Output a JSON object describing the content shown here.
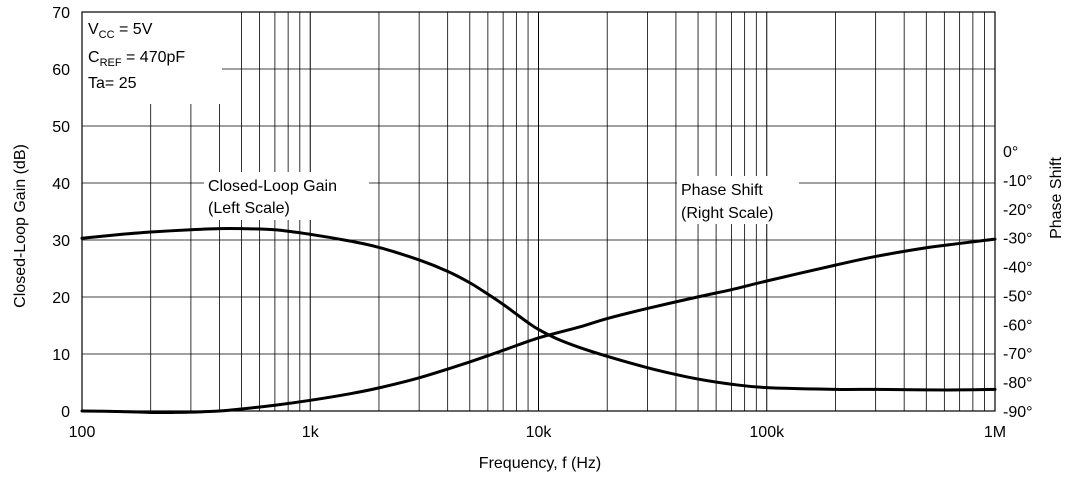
{
  "chart_data": {
    "type": "line",
    "xlabel": "Frequency, f (Hz)",
    "ylabel": "Closed-Loop Gain (dB)",
    "y2label": "Phase Shift",
    "x_scale": "log",
    "xlim": [
      100,
      1000000
    ],
    "ylim": [
      0,
      70
    ],
    "y2lim": [
      -90,
      0
    ],
    "grid": true,
    "x_tick_values": [
      100,
      1000,
      10000,
      100000,
      1000000
    ],
    "x_tick_labels": [
      "100",
      "1k",
      "10k",
      "100k",
      "1M"
    ],
    "y_ticks": [
      "0",
      "10",
      "20",
      "30",
      "40",
      "50",
      "60",
      "70"
    ],
    "y2_ticks": [
      "0°",
      "-10°",
      "-20°",
      "-30°",
      "-40°",
      "-50°",
      "-60°",
      "-70°",
      "-80°",
      "-90°"
    ],
    "conditions": {
      "vcc_main": "V",
      "vcc_sub": "CC",
      "vcc_value": " = 5V",
      "cref_main": "C",
      "cref_sub": "REF",
      "cref_value": " = 470pF",
      "ta": "Ta= 25"
    },
    "annotations": {
      "gain_line1": "Closed-Loop Gain",
      "gain_line2": "(Left Scale)",
      "phase_line1": "Phase Shift",
      "phase_line2": "(Right Scale)"
    },
    "series": [
      {
        "name": "Closed-Loop Gain",
        "axis": "left",
        "x": [
          100,
          150,
          200,
          300,
          400,
          500,
          700,
          1000,
          1500,
          2000,
          3000,
          4000,
          5000,
          6000,
          7000,
          8000,
          9000,
          10000,
          12000,
          15000,
          20000,
          30000,
          40000,
          50000,
          70000,
          100000,
          200000,
          300000,
          500000,
          700000,
          1000000
        ],
        "values": [
          30.3,
          31.0,
          31.4,
          31.8,
          32.0,
          32.0,
          31.8,
          31.0,
          29.8,
          28.7,
          26.5,
          24.5,
          22.5,
          20.5,
          18.7,
          17.0,
          15.5,
          14.3,
          12.7,
          11.2,
          9.6,
          7.6,
          6.4,
          5.6,
          4.7,
          4.1,
          3.8,
          3.8,
          3.7,
          3.7,
          3.8
        ]
      },
      {
        "name": "Phase Shift",
        "axis": "right",
        "x": [
          100,
          150,
          200,
          250,
          300,
          400,
          500,
          700,
          1000,
          1500,
          2000,
          3000,
          5000,
          7000,
          10000,
          15000,
          20000,
          30000,
          50000,
          70000,
          100000,
          200000,
          300000,
          500000,
          700000,
          1000000
        ],
        "values": [
          -90,
          -90.2,
          -90.5,
          -90.5,
          -90.4,
          -90,
          -89.3,
          -88,
          -86.3,
          -84,
          -82,
          -78.5,
          -73,
          -69,
          -64.7,
          -61,
          -58,
          -54.5,
          -50.5,
          -48,
          -45,
          -39.5,
          -36.5,
          -33.5,
          -32,
          -30.5
        ]
      }
    ]
  }
}
